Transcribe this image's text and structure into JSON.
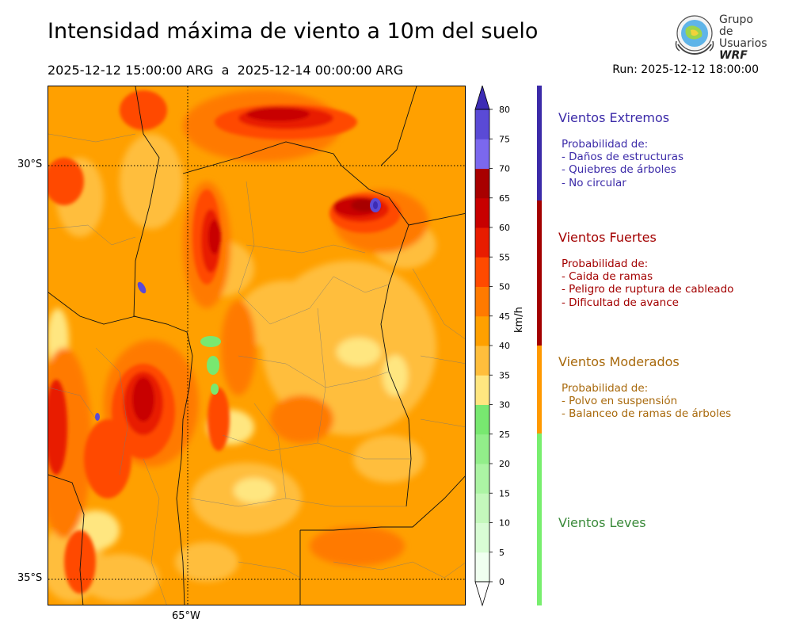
{
  "title": "Intensidad máxima de viento a 10m del suelo",
  "period": "2025-12-12 15:00:00 ARG  a  2025-12-14 00:00:00 ARG",
  "run": "Run: 2025-12-12 18:00:00",
  "logo": {
    "line1": "Grupo de",
    "line2": "Usuarios",
    "line3": "WRF"
  },
  "map": {
    "lat_labels": [
      "30°S",
      "35°S"
    ],
    "lon_labels": [
      "65°W"
    ]
  },
  "colorbar": {
    "unit": "km/h",
    "ticks": [
      "0",
      "5",
      "10",
      "15",
      "20",
      "25",
      "30",
      "35",
      "40",
      "45",
      "50",
      "55",
      "60",
      "65",
      "70",
      "75",
      "80"
    ],
    "colors": [
      "#f0fff0",
      "#d8fcd4",
      "#c4f8bc",
      "#acf4a4",
      "#92ee8a",
      "#78e870",
      "#ffe680",
      "#ffbe3c",
      "#ffa000",
      "#ff7a00",
      "#ff4a00",
      "#e81c00",
      "#c80000",
      "#a80000",
      "#7b68ee",
      "#5a4ad6",
      "#3c2cb4"
    ]
  },
  "categories": [
    {
      "title": "Vientos Extremos",
      "color": "#3b2aa8",
      "lines": [
        "Probabilidad de:",
        "- Daños de estructuras",
        "- Quiebres de árboles",
        "- No circular"
      ]
    },
    {
      "title": "Vientos Fuertes",
      "color": "#a30000",
      "lines": [
        "Probabilidad de:",
        "- Caida de ramas",
        "- Peligro de ruptura de cableado",
        "- Dificultad de avance"
      ]
    },
    {
      "title": "Vientos Moderados",
      "color": "#a8690c",
      "lines": [
        "Probabilidad de:",
        "- Polvo en suspensión",
        "- Balanceo de ramas de árboles"
      ]
    },
    {
      "title": "Vientos Leves",
      "color": "#3a8a3a",
      "lines": []
    }
  ]
}
